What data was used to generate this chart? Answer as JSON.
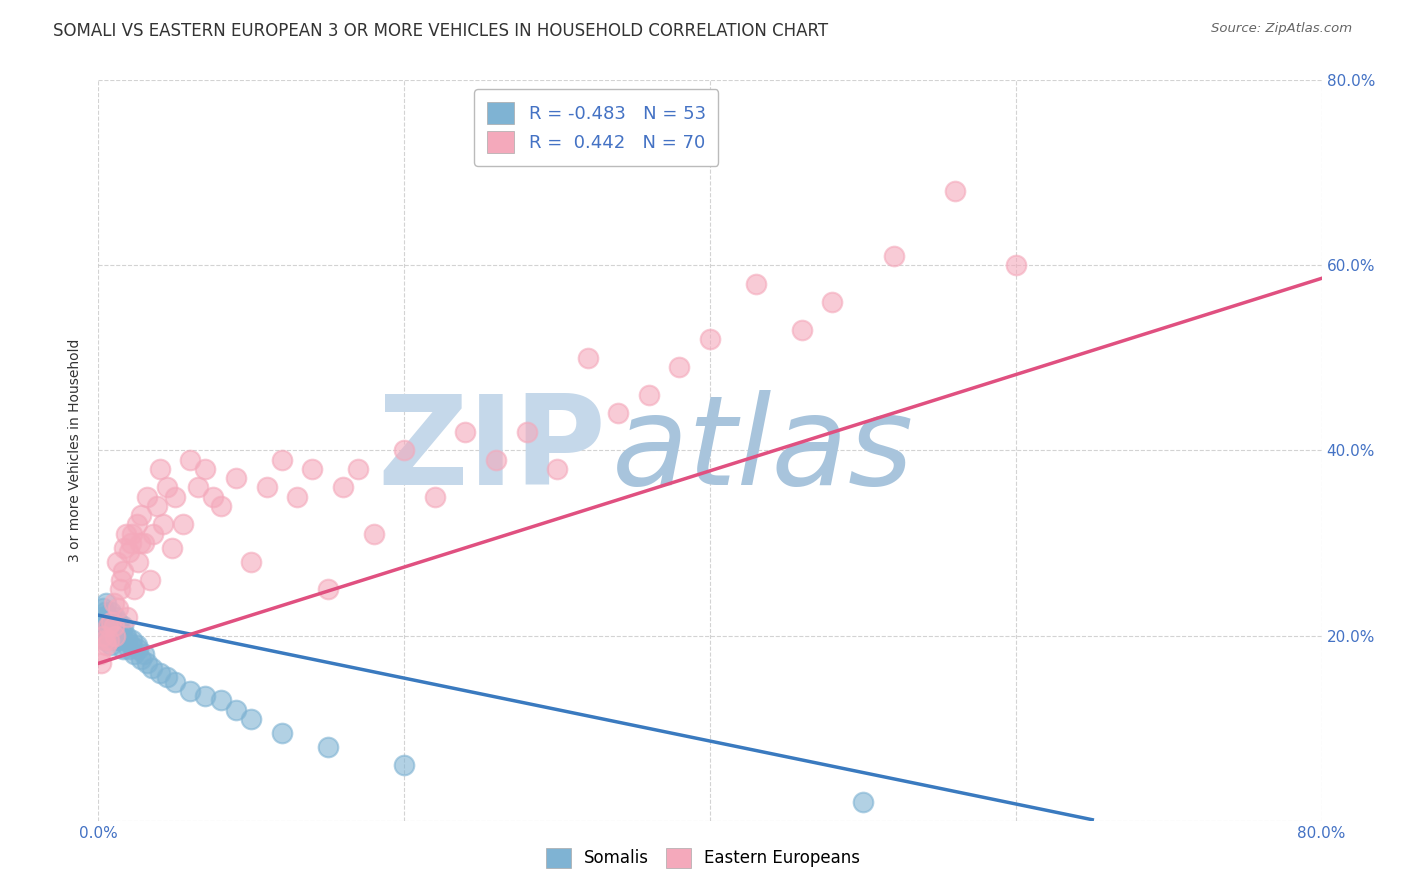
{
  "title": "SOMALI VS EASTERN EUROPEAN 3 OR MORE VEHICLES IN HOUSEHOLD CORRELATION CHART",
  "source_text": "Source: ZipAtlas.com",
  "ylabel": "3 or more Vehicles in Household",
  "xmin": 0.0,
  "xmax": 0.8,
  "ymin": 0.0,
  "ymax": 0.8,
  "somali_color": "#7fb3d3",
  "eastern_color": "#f4a9bb",
  "somali_R": -0.483,
  "somali_N": 53,
  "eastern_R": 0.442,
  "eastern_N": 70,
  "somali_line_color": "#3a7abf",
  "eastern_line_color": "#e05080",
  "background_color": "#ffffff",
  "grid_color": "#c8c8c8",
  "watermark_zip_color": "#b0c8e0",
  "watermark_atlas_color": "#8ab0d0",
  "title_fontsize": 12,
  "axis_label_fontsize": 10,
  "tick_fontsize": 11,
  "legend_fontsize": 13,
  "somali_scatter_x": [
    0.001,
    0.001,
    0.002,
    0.003,
    0.004,
    0.004,
    0.005,
    0.005,
    0.006,
    0.006,
    0.007,
    0.007,
    0.008,
    0.008,
    0.009,
    0.009,
    0.01,
    0.01,
    0.011,
    0.011,
    0.012,
    0.012,
    0.013,
    0.013,
    0.014,
    0.015,
    0.016,
    0.016,
    0.017,
    0.018,
    0.019,
    0.02,
    0.021,
    0.022,
    0.023,
    0.025,
    0.026,
    0.028,
    0.03,
    0.032,
    0.035,
    0.04,
    0.045,
    0.05,
    0.06,
    0.07,
    0.08,
    0.09,
    0.1,
    0.12,
    0.15,
    0.2,
    0.5
  ],
  "somali_scatter_y": [
    0.22,
    0.2,
    0.215,
    0.23,
    0.195,
    0.225,
    0.21,
    0.235,
    0.2,
    0.22,
    0.215,
    0.205,
    0.19,
    0.225,
    0.21,
    0.2,
    0.195,
    0.215,
    0.205,
    0.22,
    0.21,
    0.2,
    0.215,
    0.195,
    0.2,
    0.205,
    0.185,
    0.21,
    0.195,
    0.2,
    0.195,
    0.185,
    0.19,
    0.195,
    0.18,
    0.19,
    0.185,
    0.175,
    0.18,
    0.17,
    0.165,
    0.16,
    0.155,
    0.15,
    0.14,
    0.135,
    0.13,
    0.12,
    0.11,
    0.095,
    0.08,
    0.06,
    0.02
  ],
  "eastern_scatter_x": [
    0.001,
    0.002,
    0.003,
    0.004,
    0.005,
    0.006,
    0.007,
    0.008,
    0.01,
    0.01,
    0.011,
    0.012,
    0.013,
    0.014,
    0.015,
    0.016,
    0.017,
    0.018,
    0.019,
    0.02,
    0.021,
    0.022,
    0.023,
    0.025,
    0.026,
    0.027,
    0.028,
    0.03,
    0.032,
    0.034,
    0.036,
    0.038,
    0.04,
    0.042,
    0.045,
    0.048,
    0.05,
    0.055,
    0.06,
    0.065,
    0.07,
    0.075,
    0.08,
    0.09,
    0.1,
    0.11,
    0.12,
    0.13,
    0.14,
    0.15,
    0.16,
    0.17,
    0.18,
    0.2,
    0.22,
    0.24,
    0.26,
    0.28,
    0.3,
    0.32,
    0.34,
    0.36,
    0.38,
    0.4,
    0.43,
    0.46,
    0.48,
    0.52,
    0.56,
    0.6
  ],
  "eastern_scatter_y": [
    0.18,
    0.17,
    0.2,
    0.195,
    0.19,
    0.21,
    0.195,
    0.215,
    0.21,
    0.235,
    0.2,
    0.28,
    0.23,
    0.25,
    0.26,
    0.27,
    0.295,
    0.31,
    0.22,
    0.29,
    0.3,
    0.31,
    0.25,
    0.32,
    0.28,
    0.3,
    0.33,
    0.3,
    0.35,
    0.26,
    0.31,
    0.34,
    0.38,
    0.32,
    0.36,
    0.295,
    0.35,
    0.32,
    0.39,
    0.36,
    0.38,
    0.35,
    0.34,
    0.37,
    0.28,
    0.36,
    0.39,
    0.35,
    0.38,
    0.25,
    0.36,
    0.38,
    0.31,
    0.4,
    0.35,
    0.42,
    0.39,
    0.42,
    0.38,
    0.5,
    0.44,
    0.46,
    0.49,
    0.52,
    0.58,
    0.53,
    0.56,
    0.61,
    0.68,
    0.6
  ],
  "somali_line_x": [
    0.0,
    0.65
  ],
  "somali_line_y_intercept": 0.222,
  "somali_line_slope": -0.34,
  "eastern_line_x": [
    0.0,
    0.8
  ],
  "eastern_line_y_intercept": 0.17,
  "eastern_line_slope": 0.52
}
